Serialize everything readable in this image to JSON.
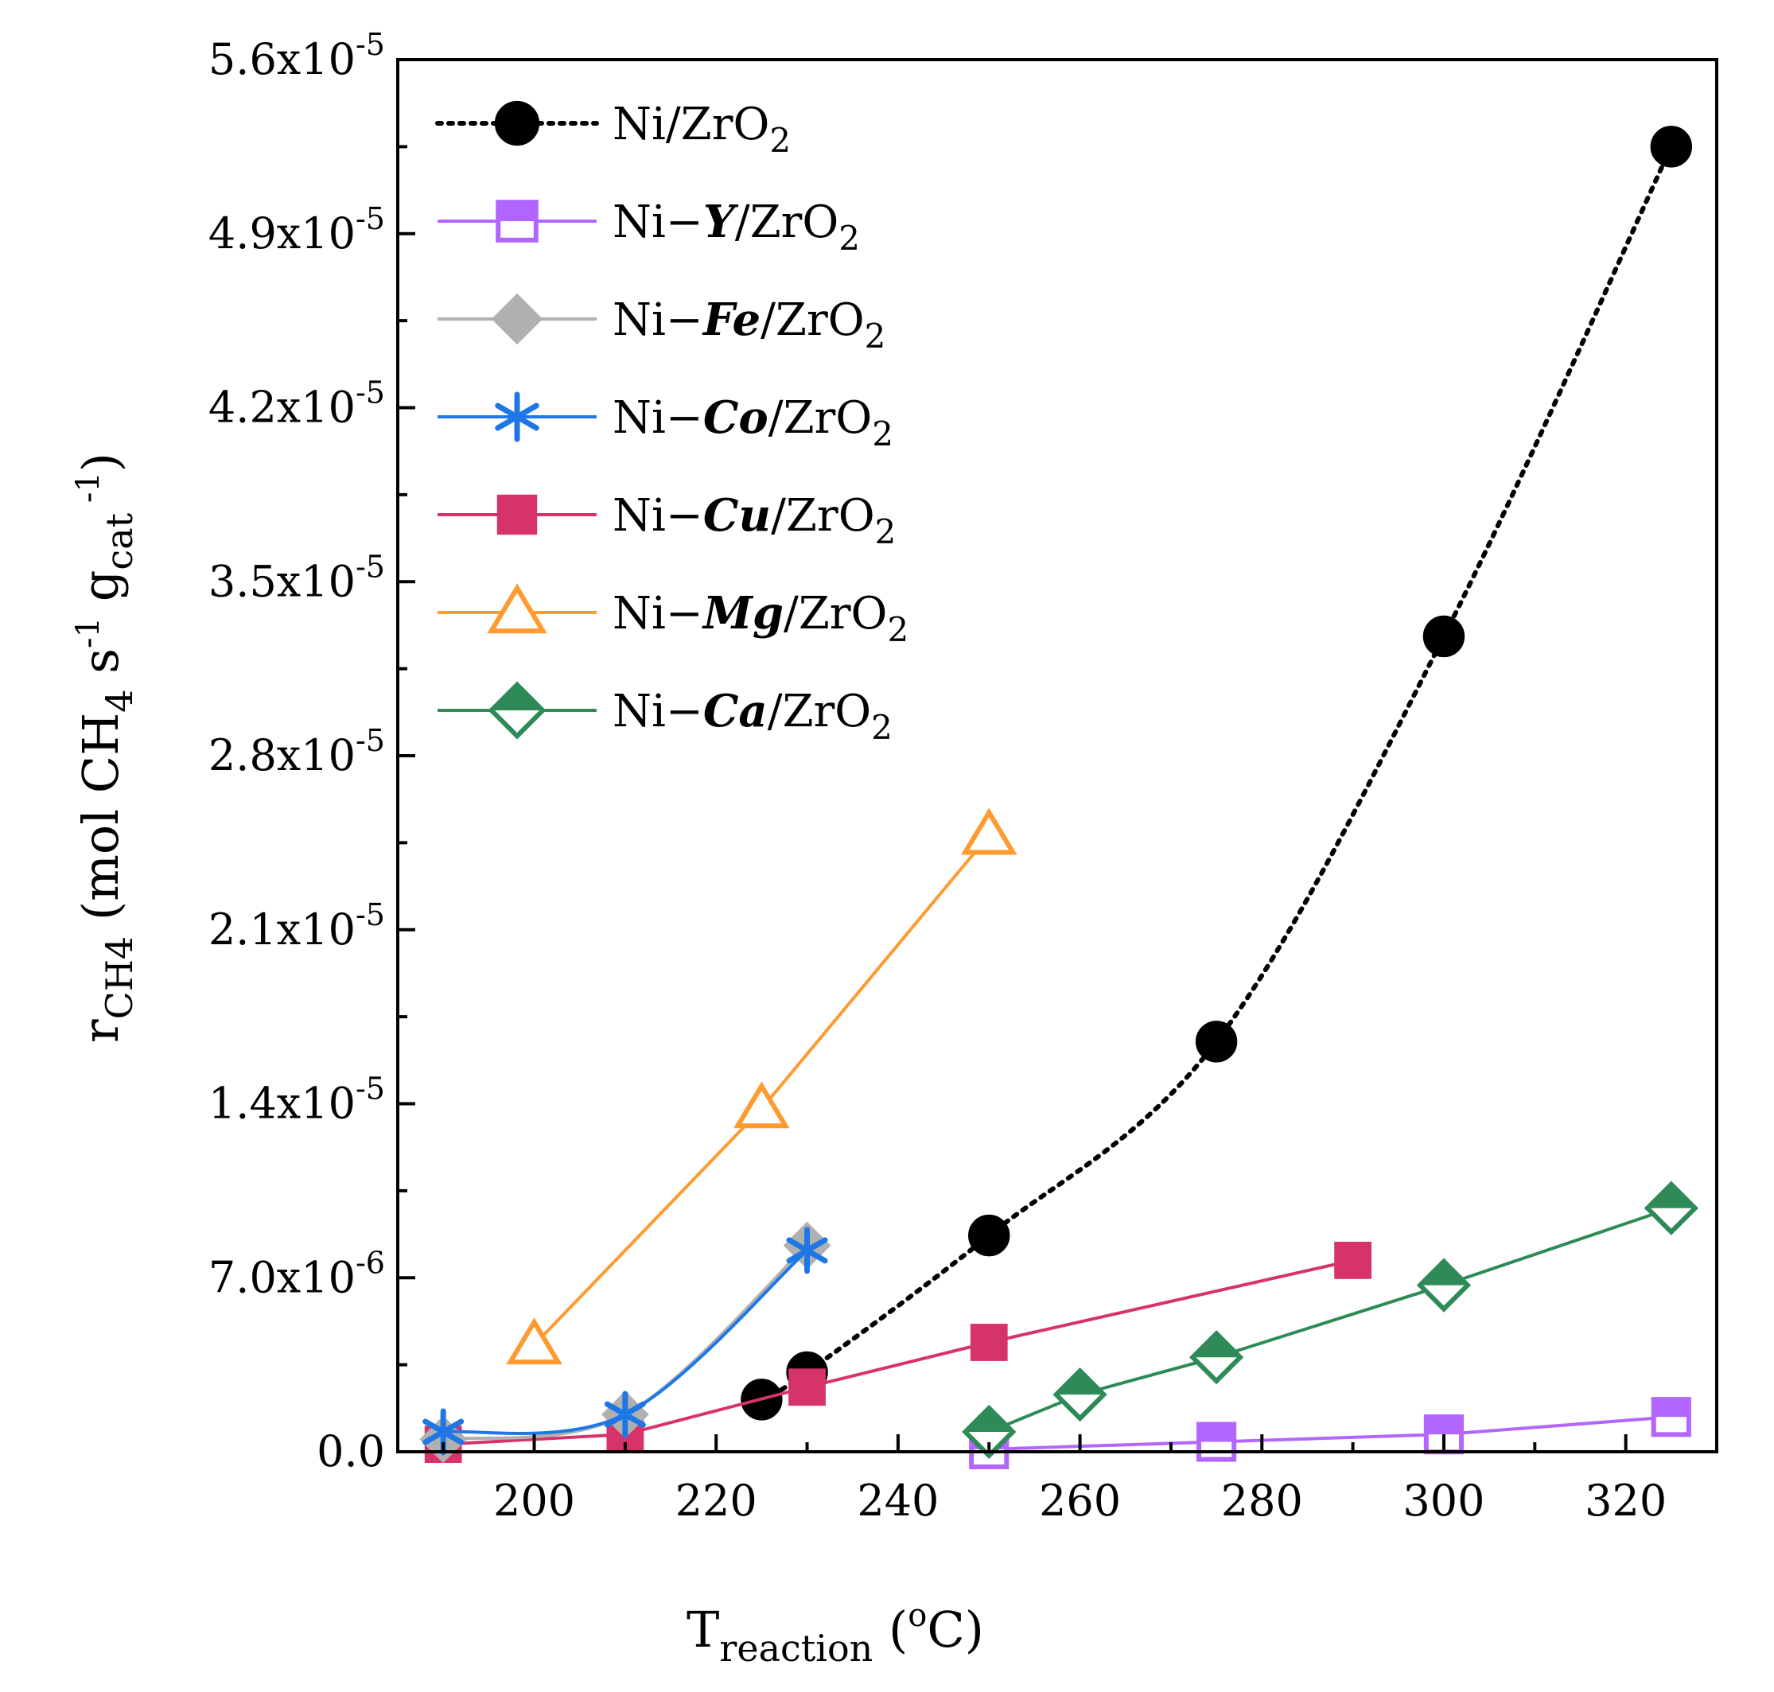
{
  "chart_data": {
    "type": "line",
    "title": "",
    "xlabel": {
      "main": "T",
      "sub": "reaction",
      "units_open": " (",
      "units_sup": "o",
      "units_close": "C)"
    },
    "ylabel": {
      "main": "r",
      "sub": "CH4",
      "units_open": " (mol CH",
      "units_sub": "4",
      "units_s": " s",
      "units_sup1": "-1",
      "units_g": " g",
      "units_gsub": "cat",
      "units_sup2": " -1",
      "units_close": ")"
    },
    "xlim": [
      185,
      330
    ],
    "ylim": [
      0,
      5.6e-05
    ],
    "x_ticks": [
      200,
      220,
      240,
      260,
      280,
      300,
      320
    ],
    "x_tick_labels": [
      "200",
      "220",
      "240",
      "260",
      "280",
      "300",
      "320"
    ],
    "y_ticks": [
      0,
      7e-06,
      1.4e-05,
      2.1e-05,
      2.8e-05,
      3.5e-05,
      4.2e-05,
      4.9e-05,
      5.6e-05
    ],
    "y_tick_labels": [
      {
        "mant": "0.0",
        "exp": ""
      },
      {
        "mant": "7.0x10",
        "exp": "-6"
      },
      {
        "mant": "1.4x10",
        "exp": "-5"
      },
      {
        "mant": "2.1x10",
        "exp": "-5"
      },
      {
        "mant": "2.8x10",
        "exp": "-5"
      },
      {
        "mant": "3.5x10",
        "exp": "-5"
      },
      {
        "mant": "4.2x10",
        "exp": "-5"
      },
      {
        "mant": "4.9x10",
        "exp": "-5"
      },
      {
        "mant": "5.6x10",
        "exp": "-5"
      }
    ],
    "legend_position": "top-left",
    "series": [
      {
        "name": "Ni/ZrO2",
        "legend": {
          "pre": "Ni",
          "dash": "",
          "metal": "",
          "post": "/ZrO",
          "sub": "2"
        },
        "color": "#000000",
        "marker": "circle",
        "line": "dotted",
        "x": [
          225,
          230,
          250,
          275,
          300,
          325
        ],
        "y": [
          2.1e-06,
          3.2e-06,
          8.7e-06,
          1.65e-05,
          3.28e-05,
          5.25e-05
        ]
      },
      {
        "name": "Ni-Y/ZrO2",
        "legend": {
          "pre": "Ni",
          "dash": "−",
          "metal": "Y",
          "post": "/ZrO",
          "sub": "2"
        },
        "color": "#b366ff",
        "marker": "square-half",
        "line": "solid",
        "x": [
          250,
          275,
          300,
          325
        ],
        "y": [
          1e-07,
          4e-07,
          7e-07,
          1.4e-06
        ]
      },
      {
        "name": "Ni-Fe/ZrO2",
        "legend": {
          "pre": "Ni",
          "dash": "−",
          "metal": "Fe",
          "post": "/ZrO",
          "sub": "2"
        },
        "color": "#b0b0b0",
        "marker": "diamond",
        "line": "solid",
        "x": [
          190,
          210,
          230
        ],
        "y": [
          5e-07,
          1.5e-06,
          8.3e-06
        ]
      },
      {
        "name": "Ni-Co/ZrO2",
        "legend": {
          "pre": "Ni",
          "dash": "−",
          "metal": "Co",
          "post": "/ZrO",
          "sub": "2"
        },
        "color": "#1f77e6",
        "marker": "asterisk",
        "line": "solid",
        "x": [
          190,
          210,
          230
        ],
        "y": [
          8e-07,
          1.5e-06,
          8.1e-06
        ]
      },
      {
        "name": "Ni-Cu/ZrO2",
        "legend": {
          "pre": "Ni",
          "dash": "−",
          "metal": "Cu",
          "post": "/ZrO",
          "sub": "2"
        },
        "color": "#d6336c",
        "marker": "square",
        "line": "solid",
        "x": [
          190,
          210,
          230,
          250,
          290
        ],
        "y": [
          3e-07,
          7e-07,
          2.6e-06,
          4.4e-06,
          7.7e-06
        ]
      },
      {
        "name": "Ni-Mg/ZrO2",
        "legend": {
          "pre": "Ni",
          "dash": "−",
          "metal": "Mg",
          "post": "/ZrO",
          "sub": "2"
        },
        "color": "#ff9a2e",
        "marker": "triangle",
        "line": "solid",
        "x": [
          200,
          225,
          250
        ],
        "y": [
          4.3e-06,
          1.38e-05,
          2.48e-05
        ]
      },
      {
        "name": "Ni-Ca/ZrO2",
        "legend": {
          "pre": "Ni",
          "dash": "−",
          "metal": "Ca",
          "post": "/ZrO",
          "sub": "2"
        },
        "color": "#2e8b57",
        "marker": "diamond-half",
        "line": "solid",
        "x": [
          250,
          260,
          275,
          300,
          325
        ],
        "y": [
          8e-07,
          2.3e-06,
          3.8e-06,
          6.7e-06,
          9.8e-06
        ]
      }
    ]
  }
}
